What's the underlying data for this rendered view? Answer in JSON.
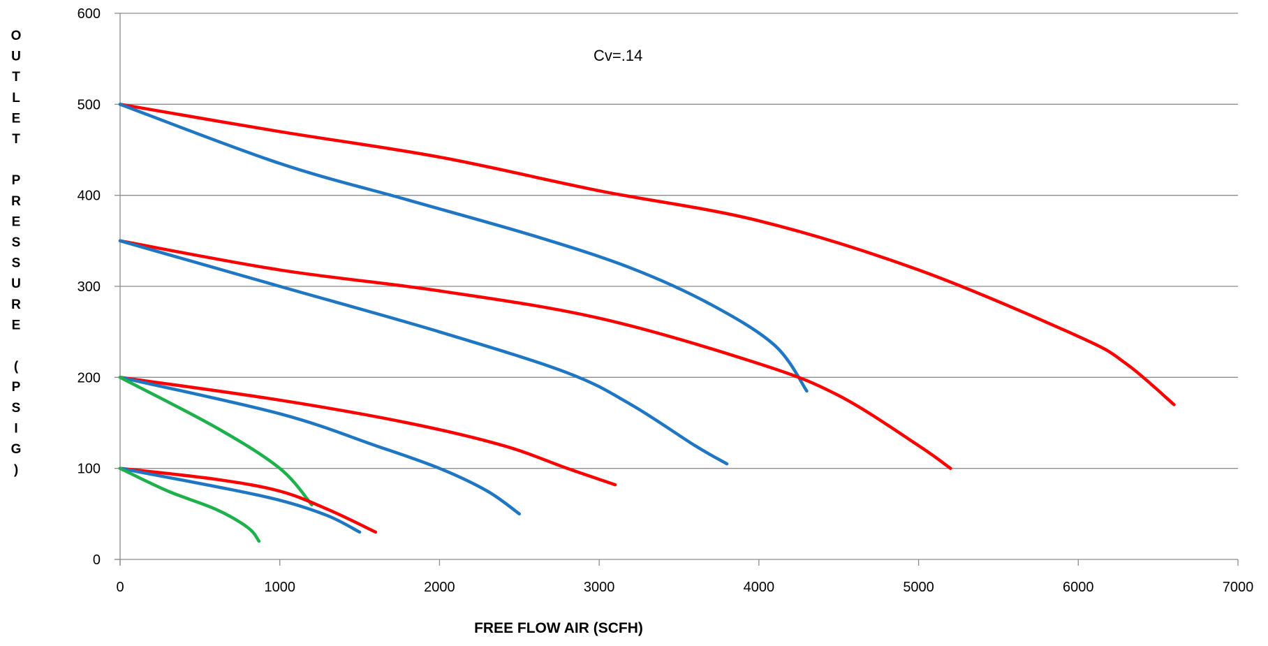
{
  "chart_data": {
    "type": "line",
    "title": "",
    "xlabel": "FREE FLOW AIR (SCFH)",
    "ylabel": "OUTLET PRESSURE (PSIG)",
    "xlim": [
      0,
      7000
    ],
    "ylim": [
      0,
      600
    ],
    "x_ticks": [
      "0",
      "1000",
      "2000",
      "3000",
      "4000",
      "5000",
      "6000",
      "7000"
    ],
    "y_ticks": [
      "0",
      "100",
      "200",
      "300",
      "400",
      "500",
      "600"
    ],
    "grid": "horizontal",
    "legend": "none",
    "annotation": "Cv=.14",
    "colors": {
      "red": "#ff0000",
      "blue": "#1f77c4",
      "green": "#1db04b",
      "grid": "#8c8c8c",
      "axis": "#8c8c8c"
    },
    "series": [
      {
        "color": "red",
        "points": [
          [
            0,
            500
          ],
          [
            1000,
            470
          ],
          [
            2000,
            442
          ],
          [
            3000,
            405
          ],
          [
            4000,
            372
          ],
          [
            5000,
            318
          ],
          [
            6000,
            245
          ],
          [
            6300,
            215
          ],
          [
            6600,
            170
          ]
        ]
      },
      {
        "color": "blue",
        "points": [
          [
            0,
            500
          ],
          [
            1000,
            435
          ],
          [
            1800,
            395
          ],
          [
            2600,
            355
          ],
          [
            3200,
            320
          ],
          [
            3700,
            280
          ],
          [
            4100,
            235
          ],
          [
            4300,
            185
          ]
        ]
      },
      {
        "color": "red",
        "points": [
          [
            0,
            350
          ],
          [
            1000,
            318
          ],
          [
            2000,
            295
          ],
          [
            3000,
            265
          ],
          [
            4000,
            215
          ],
          [
            4500,
            180
          ],
          [
            5000,
            125
          ],
          [
            5200,
            100
          ]
        ]
      },
      {
        "color": "blue",
        "points": [
          [
            0,
            350
          ],
          [
            1000,
            300
          ],
          [
            2000,
            250
          ],
          [
            2800,
            205
          ],
          [
            3200,
            170
          ],
          [
            3600,
            125
          ],
          [
            3800,
            105
          ]
        ]
      },
      {
        "color": "red",
        "points": [
          [
            0,
            200
          ],
          [
            1000,
            175
          ],
          [
            1800,
            150
          ],
          [
            2400,
            125
          ],
          [
            2800,
            100
          ],
          [
            3100,
            82
          ]
        ]
      },
      {
        "color": "blue",
        "points": [
          [
            0,
            200
          ],
          [
            1000,
            160
          ],
          [
            1600,
            125
          ],
          [
            2000,
            100
          ],
          [
            2300,
            75
          ],
          [
            2500,
            50
          ]
        ]
      },
      {
        "color": "green",
        "points": [
          [
            0,
            200
          ],
          [
            600,
            145
          ],
          [
            1000,
            100
          ],
          [
            1200,
            60
          ]
        ]
      },
      {
        "color": "red",
        "points": [
          [
            0,
            100
          ],
          [
            600,
            88
          ],
          [
            1000,
            75
          ],
          [
            1300,
            55
          ],
          [
            1600,
            30
          ]
        ]
      },
      {
        "color": "blue",
        "points": [
          [
            0,
            100
          ],
          [
            600,
            80
          ],
          [
            1000,
            65
          ],
          [
            1300,
            48
          ],
          [
            1500,
            30
          ]
        ]
      },
      {
        "color": "green",
        "points": [
          [
            0,
            100
          ],
          [
            300,
            75
          ],
          [
            600,
            55
          ],
          [
            800,
            35
          ],
          [
            870,
            20
          ]
        ]
      }
    ]
  }
}
